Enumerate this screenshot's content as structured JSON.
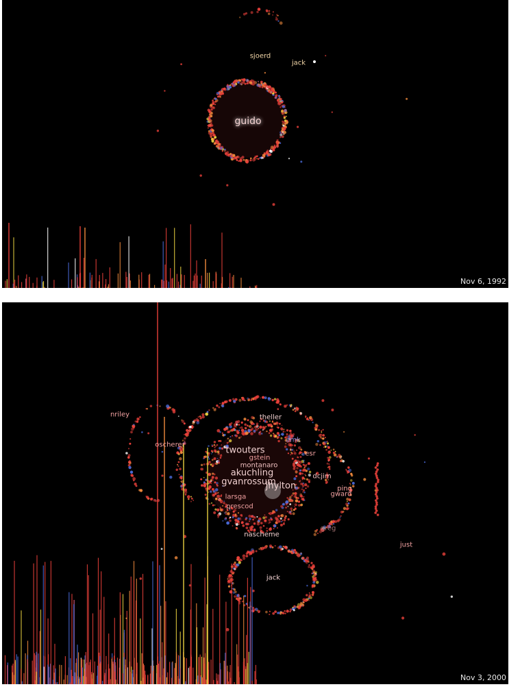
{
  "panels": [
    {
      "id": "top",
      "date": "Nov 6, 1992",
      "names": [
        {
          "text": "sjoerd",
          "color": "#f2d6a8",
          "size": 10
        },
        {
          "text": "jack",
          "color": "#f2d6a8",
          "size": 10
        },
        {
          "text": "guido",
          "color": "#f2d0d0",
          "size": 14
        }
      ]
    },
    {
      "id": "bottom",
      "date": "Nov 3, 2000",
      "names": [
        {
          "text": "nriley",
          "color": "#f0a0a0",
          "size": 10
        },
        {
          "text": "theller",
          "color": "#f0d0d0",
          "size": 10
        },
        {
          "text": "amk",
          "color": "#8080d0",
          "size": 10
        },
        {
          "text": "oscherer",
          "color": "#f0a0a0",
          "size": 10
        },
        {
          "text": "twouters",
          "color": "#f0d0d0",
          "size": 13
        },
        {
          "text": "gstein",
          "color": "#f0a0a0",
          "size": 10
        },
        {
          "text": "esr",
          "color": "#f0a0a0",
          "size": 10
        },
        {
          "text": "montanaro",
          "color": "#f0c0c0",
          "size": 10
        },
        {
          "text": "akuchling",
          "color": "#f0d0d0",
          "size": 13
        },
        {
          "text": "gvanrossum",
          "color": "#f0d0d0",
          "size": 13
        },
        {
          "text": "jhylton",
          "color": "#f0d0d0",
          "size": 13
        },
        {
          "text": "dcjim",
          "color": "#f0c0c0",
          "size": 10
        },
        {
          "text": "ping",
          "color": "#f0a0a0",
          "size": 10
        },
        {
          "text": "gward",
          "color": "#f0a0a0",
          "size": 10
        },
        {
          "text": "larsga",
          "color": "#f0a0a0",
          "size": 10
        },
        {
          "text": "prescod",
          "color": "#f0a0a0",
          "size": 10
        },
        {
          "text": "greg",
          "color": "#a07070",
          "size": 10
        },
        {
          "text": "nascheme",
          "color": "#f0d0d0",
          "size": 10
        },
        {
          "text": "just",
          "color": "#f0a0a0",
          "size": 10
        },
        {
          "text": "jack",
          "color": "#f0d0d0",
          "size": 10
        }
      ]
    }
  ],
  "colors": {
    "background": "#000000",
    "red": "#e8403a",
    "orange": "#f08a3c",
    "blue": "#4a6ad8",
    "yellow": "#e8d040",
    "white": "#ffffff"
  }
}
